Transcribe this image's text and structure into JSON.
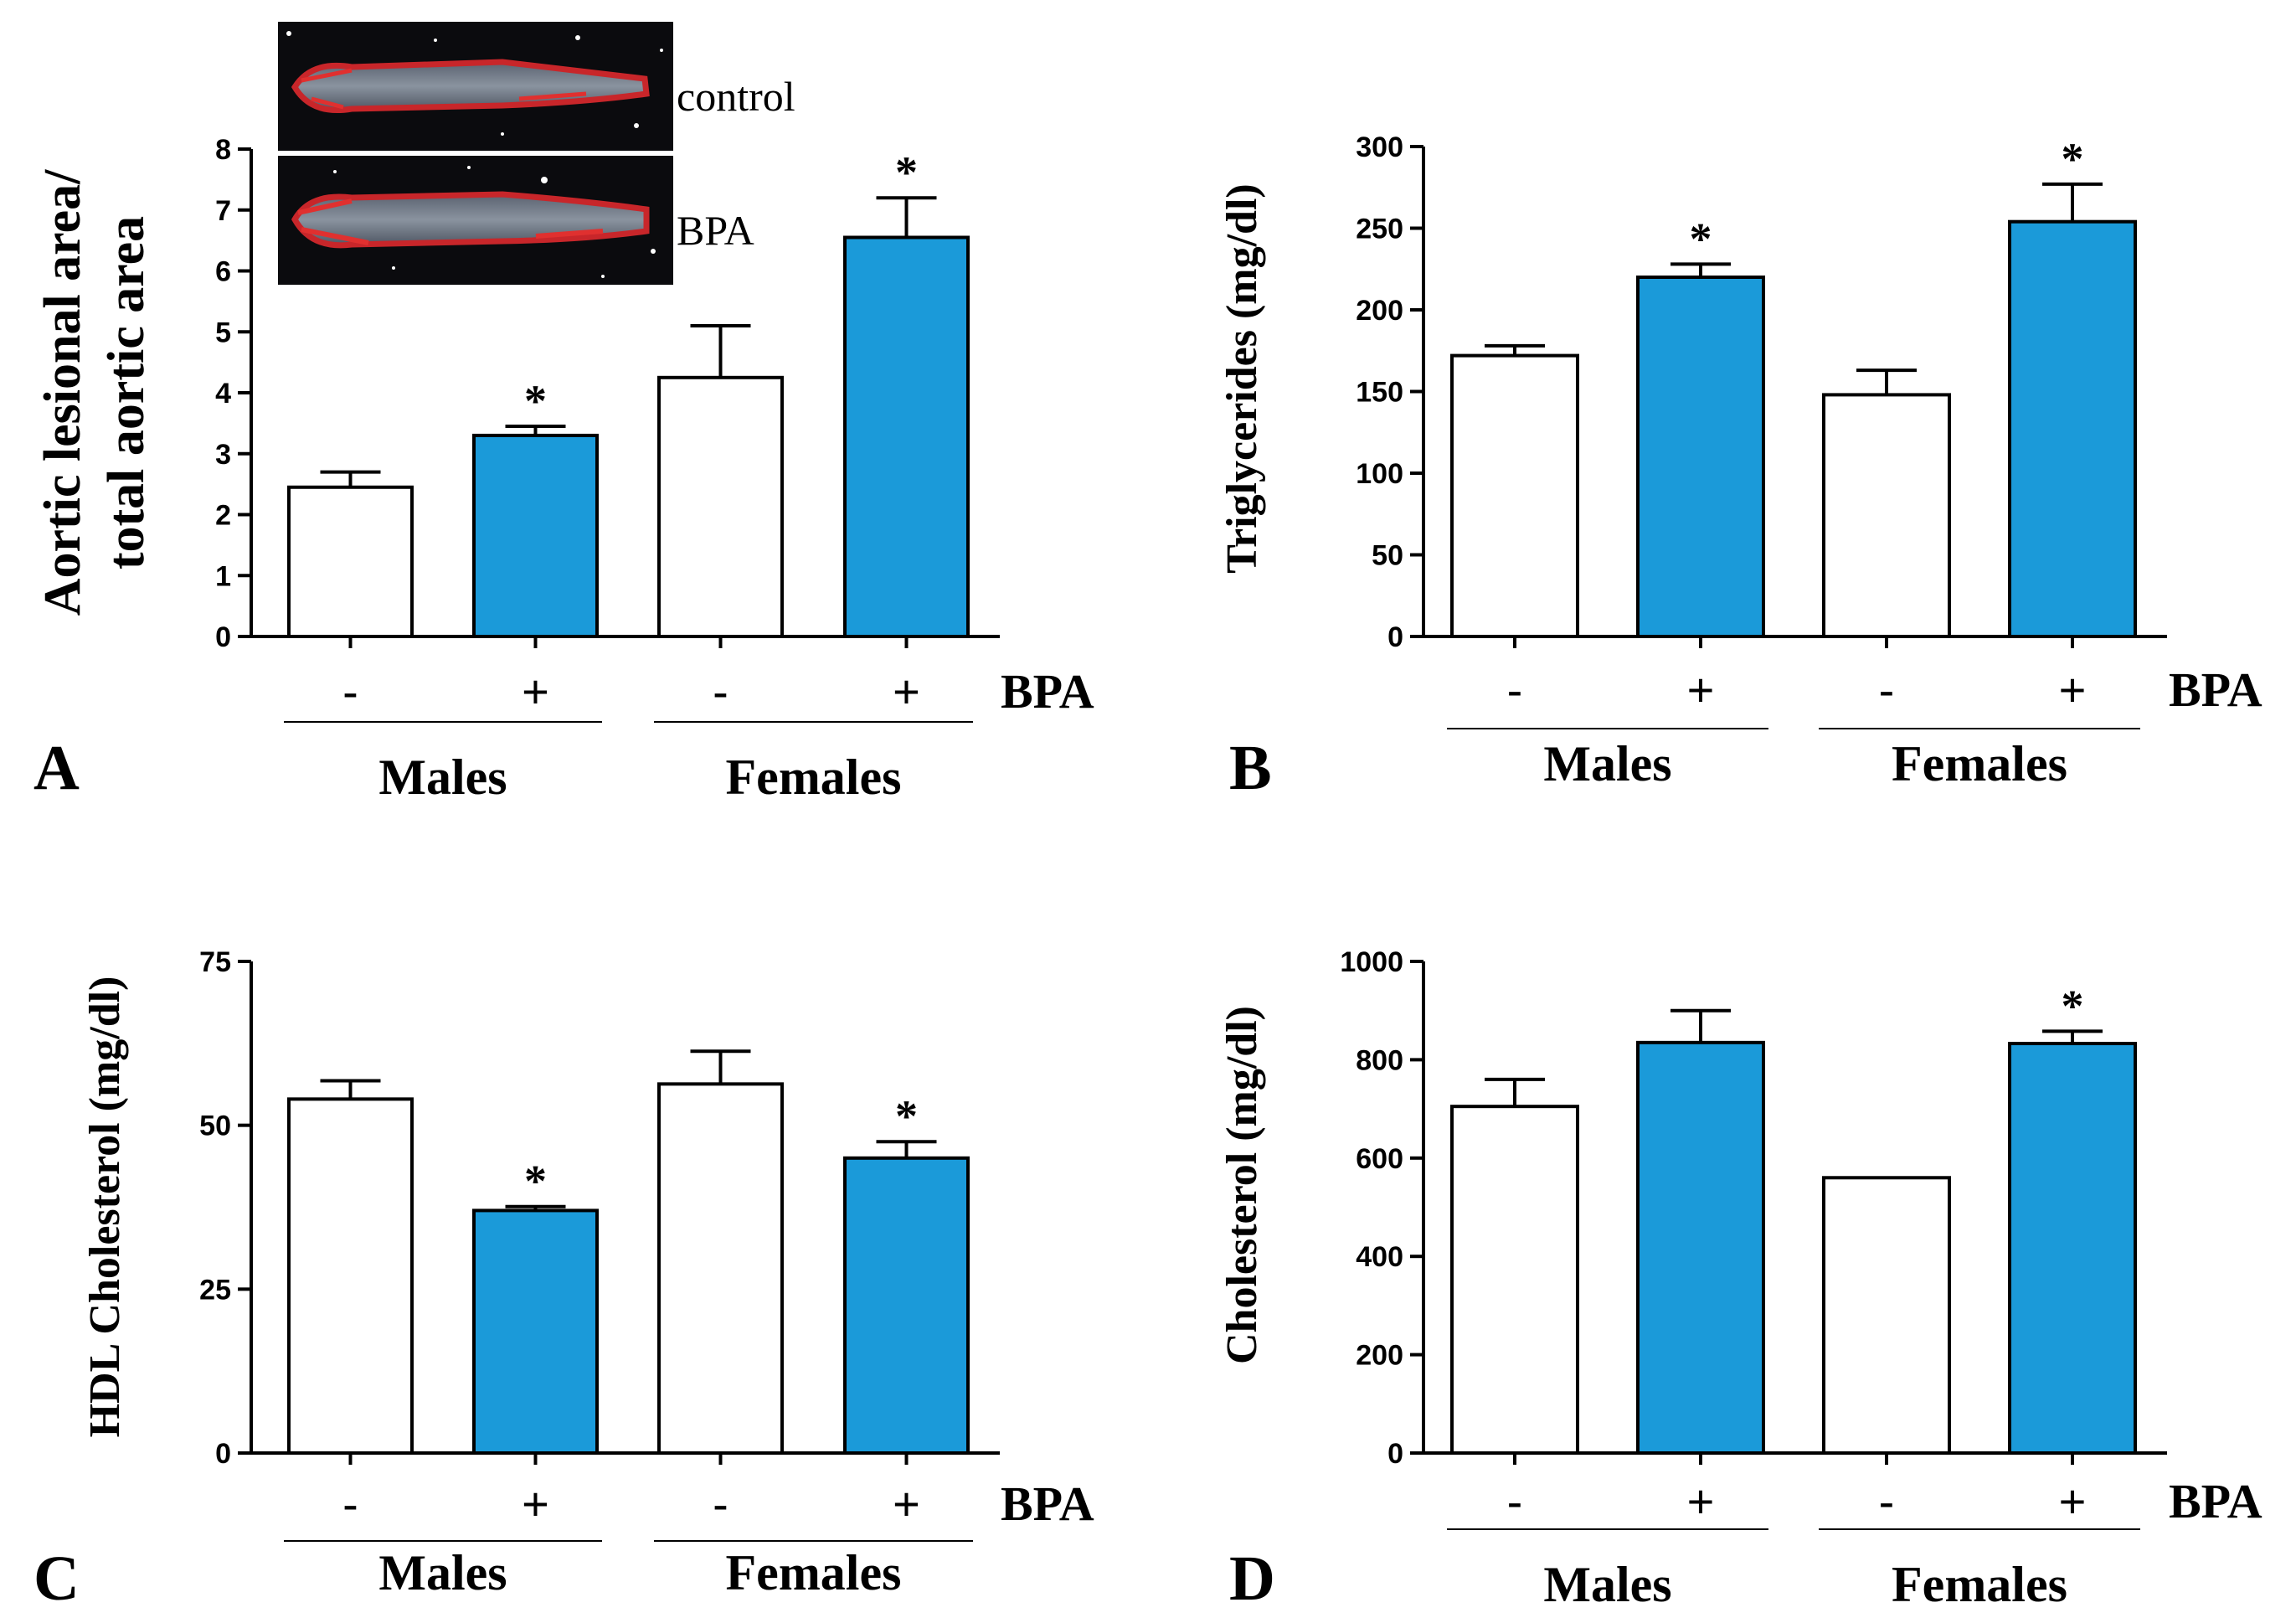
{
  "colors": {
    "bpa_bar": "#1b9ad9",
    "control_bar": "#ffffff",
    "stroke": "#000000"
  },
  "inset": {
    "top_label": "control",
    "bottom_label": "BPA"
  },
  "chart_data": [
    {
      "panel": "A",
      "type": "bar",
      "ylabel_lines": [
        "Aortic lesional area/",
        "total aortic area"
      ],
      "ylim": [
        0,
        8
      ],
      "yticks": [
        0,
        1,
        2,
        3,
        4,
        5,
        6,
        7,
        8
      ],
      "categories": [
        "-",
        "+",
        "-",
        "+"
      ],
      "bpa_label": "BPA",
      "groups": [
        "Males",
        "Females"
      ],
      "values": [
        2.45,
        3.3,
        4.25,
        6.55
      ],
      "errors": [
        0.25,
        0.15,
        0.85,
        0.65
      ],
      "bpa_treated": [
        false,
        true,
        false,
        true
      ],
      "significant": [
        false,
        true,
        false,
        true
      ],
      "star": "*"
    },
    {
      "panel": "B",
      "type": "bar",
      "ylabel_lines": [
        "Triglycerides  (mg/dl)"
      ],
      "ylim": [
        0,
        300
      ],
      "yticks": [
        0,
        50,
        100,
        150,
        200,
        250,
        300
      ],
      "categories": [
        "-",
        "+",
        "-",
        "+"
      ],
      "bpa_label": "BPA",
      "groups": [
        "Males",
        "Females"
      ],
      "values": [
        172,
        220,
        148,
        254
      ],
      "errors": [
        6,
        8,
        15,
        23
      ],
      "bpa_treated": [
        false,
        true,
        false,
        true
      ],
      "significant": [
        false,
        true,
        false,
        true
      ],
      "star": "*"
    },
    {
      "panel": "C",
      "type": "bar",
      "ylabel_lines": [
        "HDL Cholesterol (mg/dl)"
      ],
      "ylim": [
        0,
        75
      ],
      "yticks": [
        0,
        25,
        50,
        75
      ],
      "categories": [
        "-",
        "+",
        "-",
        "+"
      ],
      "bpa_label": "BPA",
      "groups": [
        "Males",
        "Females"
      ],
      "values": [
        54,
        37,
        56.3,
        45
      ],
      "errors": [
        2.8,
        0.6,
        5,
        2.5
      ],
      "bpa_treated": [
        false,
        true,
        false,
        true
      ],
      "significant": [
        false,
        true,
        false,
        true
      ],
      "star": "*"
    },
    {
      "panel": "D",
      "type": "bar",
      "ylabel_lines": [
        "Cholesterol (mg/dl)"
      ],
      "ylim": [
        0,
        1000
      ],
      "yticks": [
        0,
        200,
        400,
        600,
        800,
        1000
      ],
      "categories": [
        "-",
        "+",
        "-",
        "+"
      ],
      "bpa_label": "BPA",
      "groups": [
        "Males",
        "Females"
      ],
      "values": [
        705,
        835,
        560,
        833
      ],
      "errors": [
        55,
        65,
        0,
        25
      ],
      "bpa_treated": [
        false,
        true,
        false,
        true
      ],
      "significant": [
        false,
        false,
        false,
        true
      ],
      "star": "*"
    }
  ]
}
